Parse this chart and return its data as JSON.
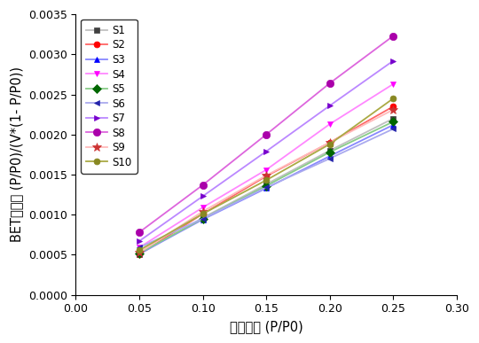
{
  "series": [
    {
      "name": "S1",
      "x": [
        0.05,
        0.1,
        0.15,
        0.2,
        0.25
      ],
      "y": [
        0.000505,
        0.00096,
        0.00138,
        0.0018,
        0.0022
      ],
      "color": "#C0C0C0",
      "marker": "s",
      "markersize": 5,
      "linewidth": 1.3,
      "markerfacecolor": "#404040",
      "markeredgecolor": "#404040"
    },
    {
      "name": "S2",
      "x": [
        0.05,
        0.1,
        0.15,
        0.2,
        0.25
      ],
      "y": [
        0.000505,
        0.00101,
        0.00148,
        0.0019,
        0.00235
      ],
      "color": "#FF6666",
      "marker": "o",
      "markersize": 5,
      "linewidth": 1.3,
      "markerfacecolor": "#FF0000",
      "markeredgecolor": "#FF0000"
    },
    {
      "name": "S3",
      "x": [
        0.05,
        0.1,
        0.15,
        0.2,
        0.25
      ],
      "y": [
        0.00051,
        0.00094,
        0.00133,
        0.00173,
        0.00212
      ],
      "color": "#8888FF",
      "marker": "^",
      "markersize": 5,
      "linewidth": 1.3,
      "markerfacecolor": "#0000FF",
      "markeredgecolor": "#0000FF"
    },
    {
      "name": "S4",
      "x": [
        0.05,
        0.1,
        0.15,
        0.2,
        0.25
      ],
      "y": [
        0.00059,
        0.00109,
        0.00156,
        0.00213,
        0.00263
      ],
      "color": "#FF88FF",
      "marker": "v",
      "markersize": 5,
      "linewidth": 1.3,
      "markerfacecolor": "#FF00FF",
      "markeredgecolor": "#FF00FF"
    },
    {
      "name": "S5",
      "x": [
        0.05,
        0.1,
        0.15,
        0.2,
        0.25
      ],
      "y": [
        0.00052,
        0.00095,
        0.00136,
        0.00178,
        0.00216
      ],
      "color": "#88CC88",
      "marker": "D",
      "markersize": 5,
      "linewidth": 1.3,
      "markerfacecolor": "#006600",
      "markeredgecolor": "#006600"
    },
    {
      "name": "S6",
      "x": [
        0.05,
        0.1,
        0.15,
        0.2,
        0.25
      ],
      "y": [
        0.00059,
        0.00095,
        0.00134,
        0.0017,
        0.00207
      ],
      "color": "#AAAAEE",
      "marker": "<",
      "markersize": 5,
      "linewidth": 1.3,
      "markerfacecolor": "#2222AA",
      "markeredgecolor": "#2222AA"
    },
    {
      "name": "S7",
      "x": [
        0.05,
        0.1,
        0.15,
        0.2,
        0.25
      ],
      "y": [
        0.00067,
        0.00123,
        0.00179,
        0.00236,
        0.00292
      ],
      "color": "#BB88FF",
      "marker": ">",
      "markersize": 5,
      "linewidth": 1.3,
      "markerfacecolor": "#7700CC",
      "markeredgecolor": "#7700CC"
    },
    {
      "name": "S8",
      "x": [
        0.05,
        0.1,
        0.15,
        0.2,
        0.25
      ],
      "y": [
        0.00078,
        0.00137,
        0.002,
        0.00264,
        0.00323
      ],
      "color": "#DD66DD",
      "marker": "o",
      "markersize": 6,
      "linewidth": 1.3,
      "markerfacecolor": "#AA00AA",
      "markeredgecolor": "#AA00AA"
    },
    {
      "name": "S9",
      "x": [
        0.05,
        0.1,
        0.15,
        0.2,
        0.25
      ],
      "y": [
        0.000525,
        0.00104,
        0.00149,
        0.0019,
        0.00231
      ],
      "color": "#FFBBBB",
      "marker": "*",
      "markersize": 7,
      "linewidth": 1.3,
      "markerfacecolor": "#CC3333",
      "markeredgecolor": "#CC3333"
    },
    {
      "name": "S10",
      "x": [
        0.05,
        0.1,
        0.15,
        0.2,
        0.25
      ],
      "y": [
        0.000555,
        0.00101,
        0.00143,
        0.00188,
        0.00245
      ],
      "color": "#AAAA44",
      "marker": "o",
      "markersize": 5,
      "linewidth": 1.3,
      "markerfacecolor": "#888822",
      "markeredgecolor": "#888822"
    }
  ],
  "xlabel": "相对压力 (P/P0)",
  "ylabel": "BET测试值 (P/P0)/(V*(1- P/P0))",
  "xlim": [
    0.0,
    0.3
  ],
  "ylim": [
    0.0,
    0.0035
  ],
  "xticks": [
    0.0,
    0.05,
    0.1,
    0.15,
    0.2,
    0.25,
    0.3
  ],
  "yticks": [
    0.0,
    0.0005,
    0.001,
    0.0015,
    0.002,
    0.0025,
    0.003,
    0.0035
  ],
  "legend_fontsize": 8.5,
  "axis_fontsize": 10.5,
  "tick_fontsize": 9,
  "figure_width": 5.4,
  "figure_height": 3.87,
  "dpi": 100
}
